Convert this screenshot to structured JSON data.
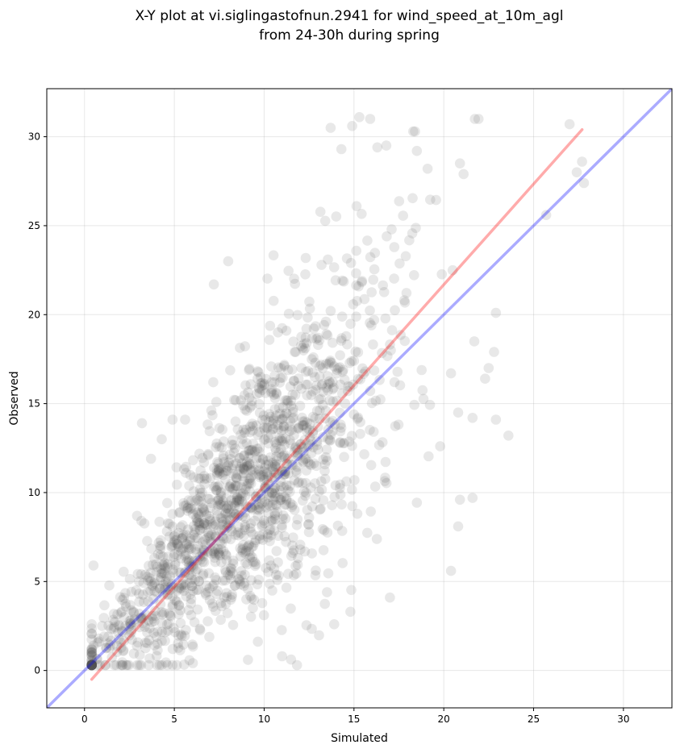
{
  "chart_data": {
    "type": "scatter",
    "title_lines": [
      "X-Y plot at vi.siglingastofnun.2941 for wind_speed_at_10m_agl",
      "from 24-30h during spring"
    ],
    "xlabel": "Simulated",
    "ylabel": "Observed",
    "xlim": [
      -2.1,
      32.7
    ],
    "ylim": [
      -2.1,
      32.7
    ],
    "xticks": [
      0,
      5,
      10,
      15,
      20,
      25,
      30
    ],
    "yticks": [
      0,
      5,
      10,
      15,
      20,
      25,
      30
    ],
    "grid": true,
    "point_color": "#4d4d4d",
    "one_to_one_color": "#0000ff",
    "fit_color": "#ff0000",
    "one_to_one_line": {
      "from": [
        -2.1,
        -2.1
      ],
      "to": [
        32.7,
        32.7
      ]
    },
    "fit_line": {
      "from": [
        0.4,
        -0.5
      ],
      "to": [
        27.7,
        30.4
      ]
    },
    "point_count": 1500,
    "seed": 2941,
    "cluster": {
      "x_center": 8.0,
      "y_center": 8.5,
      "x_max": 27.5,
      "y_max": 31.0
    },
    "outliers": [
      [
        27.0,
        30.7
      ],
      [
        27.7,
        28.6
      ],
      [
        27.4,
        28.0
      ],
      [
        27.8,
        27.4
      ],
      [
        25.7,
        25.6
      ],
      [
        23.6,
        13.2
      ],
      [
        22.9,
        14.1
      ],
      [
        22.8,
        17.9
      ],
      [
        22.9,
        20.1
      ],
      [
        22.3,
        16.4
      ],
      [
        21.7,
        18.5
      ],
      [
        21.6,
        14.2
      ],
      [
        21.6,
        9.7
      ],
      [
        20.4,
        5.6
      ],
      [
        19.8,
        12.6
      ],
      [
        20.8,
        8.1
      ],
      [
        20.9,
        9.6
      ],
      [
        20.8,
        14.5
      ],
      [
        20.4,
        16.7
      ],
      [
        22.5,
        17.0
      ],
      [
        15.3,
        31.1
      ],
      [
        15.9,
        31.0
      ],
      [
        13.7,
        30.5
      ],
      [
        14.9,
        30.6
      ],
      [
        18.4,
        30.3
      ],
      [
        18.3,
        30.3
      ],
      [
        16.8,
        29.5
      ],
      [
        14.3,
        29.3
      ],
      [
        18.5,
        29.2
      ],
      [
        16.3,
        29.4
      ],
      [
        20.9,
        28.5
      ],
      [
        21.1,
        27.9
      ],
      [
        19.1,
        28.2
      ],
      [
        3.2,
        13.9
      ],
      [
        3.7,
        11.9
      ],
      [
        4.3,
        13.0
      ],
      [
        4.9,
        14.1
      ],
      [
        5.6,
        14.1
      ],
      [
        7.2,
        21.7
      ],
      [
        8.0,
        23.0
      ],
      [
        0.5,
        5.9
      ],
      [
        0.5,
        1.4
      ],
      [
        13.5,
        4.4
      ],
      [
        17.0,
        4.1
      ],
      [
        14.8,
        3.3
      ],
      [
        13.9,
        2.6
      ],
      [
        11.0,
        0.8
      ],
      [
        9.1,
        0.6
      ]
    ]
  }
}
